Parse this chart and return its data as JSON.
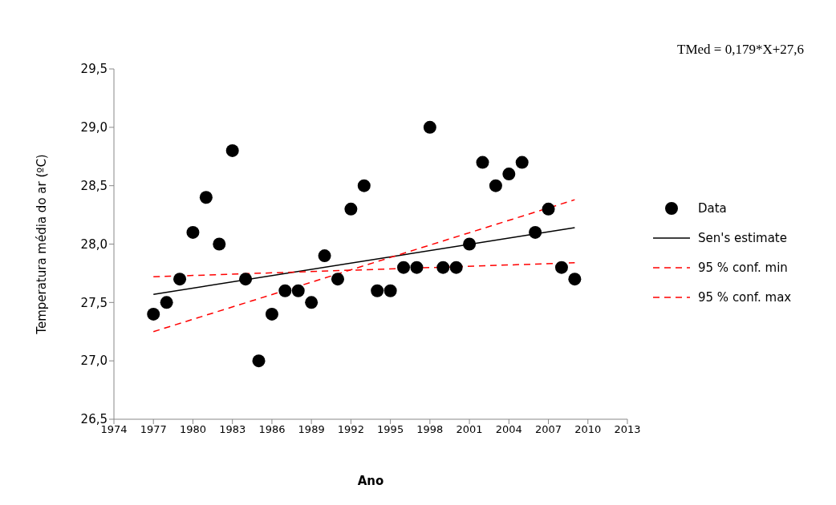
{
  "chart_data": {
    "type": "scatter",
    "xlabel": "Ano",
    "ylabel": "Temperatura  média do ar (ºC)",
    "annotations": [
      "TMed = 0,179*X+27,6"
    ],
    "xlim": [
      1974,
      2013
    ],
    "xticks": [
      1974,
      1977,
      1980,
      1983,
      1986,
      1989,
      1992,
      1995,
      1998,
      2001,
      2004,
      2007,
      2010,
      2013
    ],
    "ylim": [
      26.5,
      29.5
    ],
    "yticks": [
      {
        "value": 26.5,
        "label": "26,5"
      },
      {
        "value": 27,
        "label": "27,0"
      },
      {
        "value": 27.5,
        "label": "27,5"
      },
      {
        "value": 28,
        "label": "28,0"
      },
      {
        "value": 28.5,
        "label": "28,5"
      },
      {
        "value": 29,
        "label": "29,0"
      },
      {
        "value": 29.5,
        "label": "29,5"
      }
    ],
    "legend": "right",
    "grid": false,
    "series": [
      {
        "name": "Data",
        "color": "#000000",
        "marker": "circle",
        "x": [
          1977,
          1978,
          1979,
          1980,
          1981,
          1982,
          1983,
          1984,
          1985,
          1986,
          1987,
          1988,
          1989,
          1990,
          1991,
          1992,
          1993,
          1994,
          1995,
          1996,
          1997,
          1998,
          1999,
          2000,
          2001,
          2002,
          2003,
          2004,
          2005,
          2006,
          2007,
          2008,
          2009
        ],
        "values": [
          27.4,
          27.5,
          27.7,
          28.1,
          28.4,
          28.0,
          28.8,
          27.7,
          27.0,
          27.4,
          27.6,
          27.6,
          27.5,
          27.9,
          27.7,
          28.3,
          28.5,
          27.6,
          27.6,
          27.8,
          27.8,
          29.0,
          27.8,
          27.8,
          28.0,
          28.7,
          28.5,
          28.6,
          28.7,
          28.1,
          28.3,
          27.8,
          27.7
        ]
      },
      {
        "name": "Sen's estimate",
        "type": "line",
        "color": "#000000",
        "line_style": "solid",
        "marker": "none",
        "x": [
          1977,
          2009
        ],
        "values": [
          27.57,
          28.14
        ]
      },
      {
        "name": "95 % conf. min",
        "type": "line",
        "color": "#ff0000",
        "line_style": "dashed",
        "marker": "none",
        "x": [
          1977,
          2009
        ],
        "values": [
          27.72,
          27.84
        ]
      },
      {
        "name": "95 % conf. max",
        "type": "line",
        "color": "#ff0000",
        "line_style": "dashed",
        "marker": "none",
        "x": [
          1977,
          2009
        ],
        "values": [
          27.25,
          28.38
        ]
      }
    ]
  }
}
